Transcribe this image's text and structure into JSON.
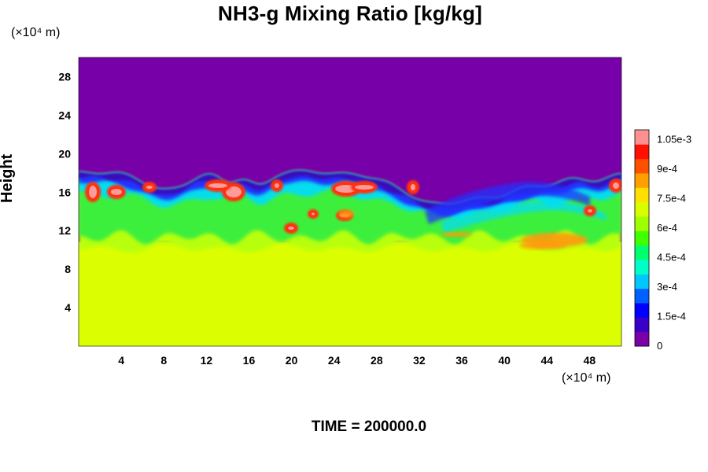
{
  "chart_data": {
    "type": "heatmap",
    "title": "NH3-g Mixing Ratio [kg/kg]",
    "ylabel": "Height",
    "x_unit": "(×10⁴ m)",
    "y_unit": "(×10⁴ m)",
    "xlim": [
      0,
      51
    ],
    "ylim": [
      0,
      30
    ],
    "x_ticks": [
      "4",
      "8",
      "12",
      "16",
      "20",
      "24",
      "28",
      "32",
      "36",
      "40",
      "44",
      "48"
    ],
    "y_ticks": [
      "4",
      "8",
      "12",
      "16",
      "20",
      "24",
      "28"
    ],
    "colorbar": {
      "range": [
        0,
        0.0011
      ],
      "ticks": [
        "0",
        "1.5e-4",
        "3e-4",
        "4.5e-4",
        "6e-4",
        "7.5e-4",
        "9e-4",
        "1.05e-3"
      ],
      "colors": [
        "#7a00a8",
        "#3b00c8",
        "#0000ff",
        "#0060ff",
        "#00c8ff",
        "#00ffc8",
        "#00ff70",
        "#40ff00",
        "#a0ff00",
        "#d8ff00",
        "#ffe000",
        "#ffa000",
        "#ff5000",
        "#ff1000",
        "#ff9090"
      ]
    },
    "regions": {
      "upper_layer_value": 0,
      "lower_layer_value": 0.00075,
      "interface_height": 18,
      "mixed_layer_bottom": 10
    },
    "colors": {
      "upper": "#7700a8",
      "lower": "#dbff00",
      "mixed_green": "#3cef3c",
      "cyan": "#00dcff",
      "blue": "#2030ff",
      "dark_blue": "#3a10b8",
      "red": "#ff3010",
      "pink": "#ff9a9a",
      "orange": "#ff9a10",
      "yellow_green": "#b8ff10"
    }
  },
  "footer": {
    "time_label": "TIME = 200000.0"
  }
}
